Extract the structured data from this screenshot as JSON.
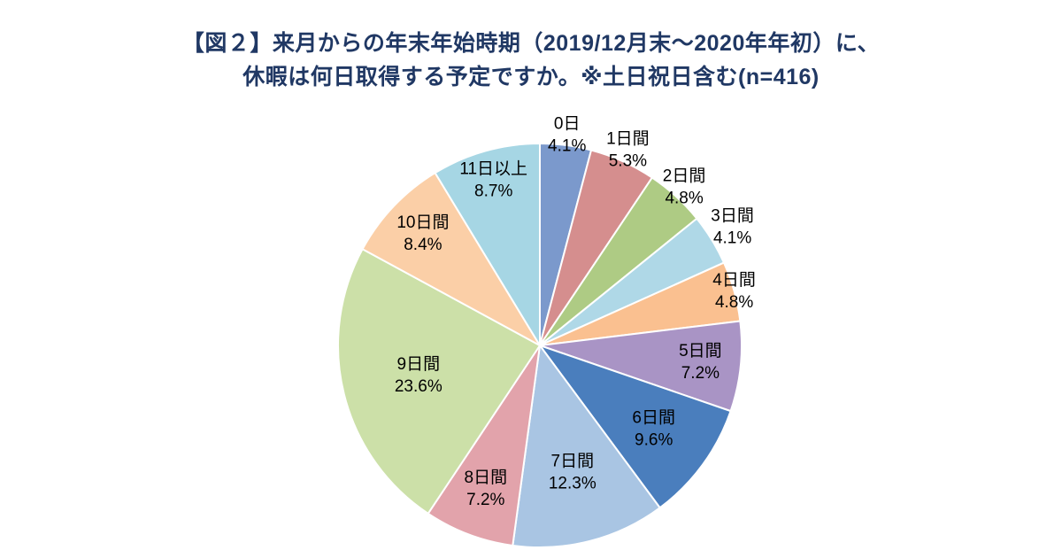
{
  "title": {
    "line1": "【図２】来月からの年末年始時期（2019/12月末～2020年年初）に、",
    "line2": "休暇は何日取得する予定ですか。※土日祝日含む(n=416)"
  },
  "chart_data": {
    "type": "pie",
    "title": "【図２】来月からの年末年始時期（2019/12月末～2020年年初）に、休暇は何日取得する予定ですか。※土日祝日含む(n=416)",
    "n": 416,
    "unit": "%",
    "start_angle_deg": 0,
    "direction": "clockwise",
    "legend": "none",
    "slice_border_color": "#ffffff",
    "slices": [
      {
        "label": "0日",
        "value": 4.1,
        "color": "#7B99CC",
        "label_r": 1.05
      },
      {
        "label": "1日間",
        "value": 5.3,
        "color": "#D58E8E",
        "label_r": 1.06
      },
      {
        "label": "2日間",
        "value": 4.8,
        "color": "#AECB84",
        "label_r": 1.06
      },
      {
        "label": "3日間",
        "value": 4.1,
        "color": "#AFD8E7",
        "label_r": 1.12
      },
      {
        "label": "4日間",
        "value": 4.8,
        "color": "#FAC090",
        "label_r": 1.0
      },
      {
        "label": "5日間",
        "value": 7.2,
        "color": "#A994C5",
        "label_r": 0.8
      },
      {
        "label": "6日間",
        "value": 9.6,
        "color": "#4A7EBD",
        "label_r": 0.7
      },
      {
        "label": "7日間",
        "value": 12.3,
        "color": "#A9C5E3",
        "label_r": 0.65
      },
      {
        "label": "8日間",
        "value": 7.2,
        "color": "#E2A3AB",
        "label_r": 0.76
      },
      {
        "label": "9日間",
        "value": 23.6,
        "color": "#CCE0A8",
        "label_r": 0.62
      },
      {
        "label": "10日間",
        "value": 8.4,
        "color": "#FBCFA7",
        "label_r": 0.8
      },
      {
        "label": "11日以上",
        "value": 8.7,
        "color": "#A6D6E4",
        "label_r": 0.85
      }
    ]
  }
}
